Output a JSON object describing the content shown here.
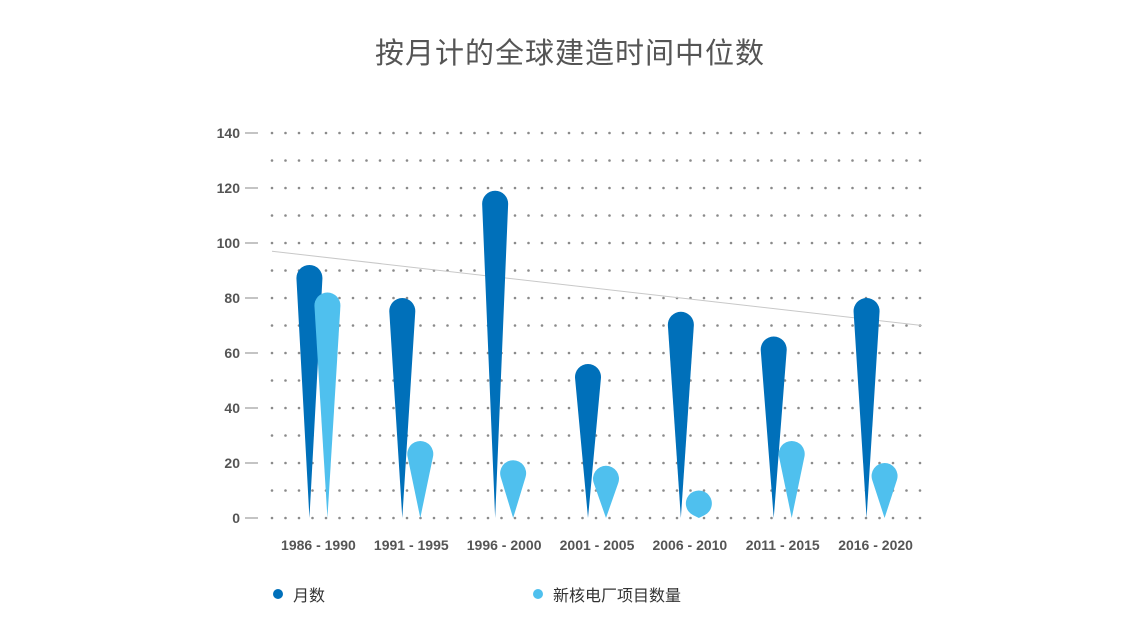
{
  "chart_data": {
    "type": "bar",
    "title": "按月计的全球建造时间中位数",
    "xlabel": "",
    "ylabel": "",
    "categories": [
      "1986 - 1990",
      "1991 - 1995",
      "1996 - 2000",
      "2001 - 2005",
      "2006 - 2010",
      "2011 - 2015",
      "2016 - 2020"
    ],
    "series": [
      {
        "name": "月数",
        "values": [
          92,
          80,
          119,
          56,
          75,
          66,
          80
        ],
        "color": "#0070BA"
      },
      {
        "name": "新核电厂项目数量",
        "values": [
          82,
          28,
          21,
          19,
          10,
          28,
          20
        ],
        "color": "#4FC0EE"
      }
    ],
    "ylim": [
      0,
      140
    ],
    "yticks": [
      0,
      20,
      40,
      60,
      80,
      100,
      120,
      140
    ],
    "trendline": {
      "from": [
        0,
        97
      ],
      "to": [
        7,
        70
      ]
    },
    "grid": "dotted",
    "legend_position": "bottom-left",
    "bar_style": "teardrop"
  }
}
